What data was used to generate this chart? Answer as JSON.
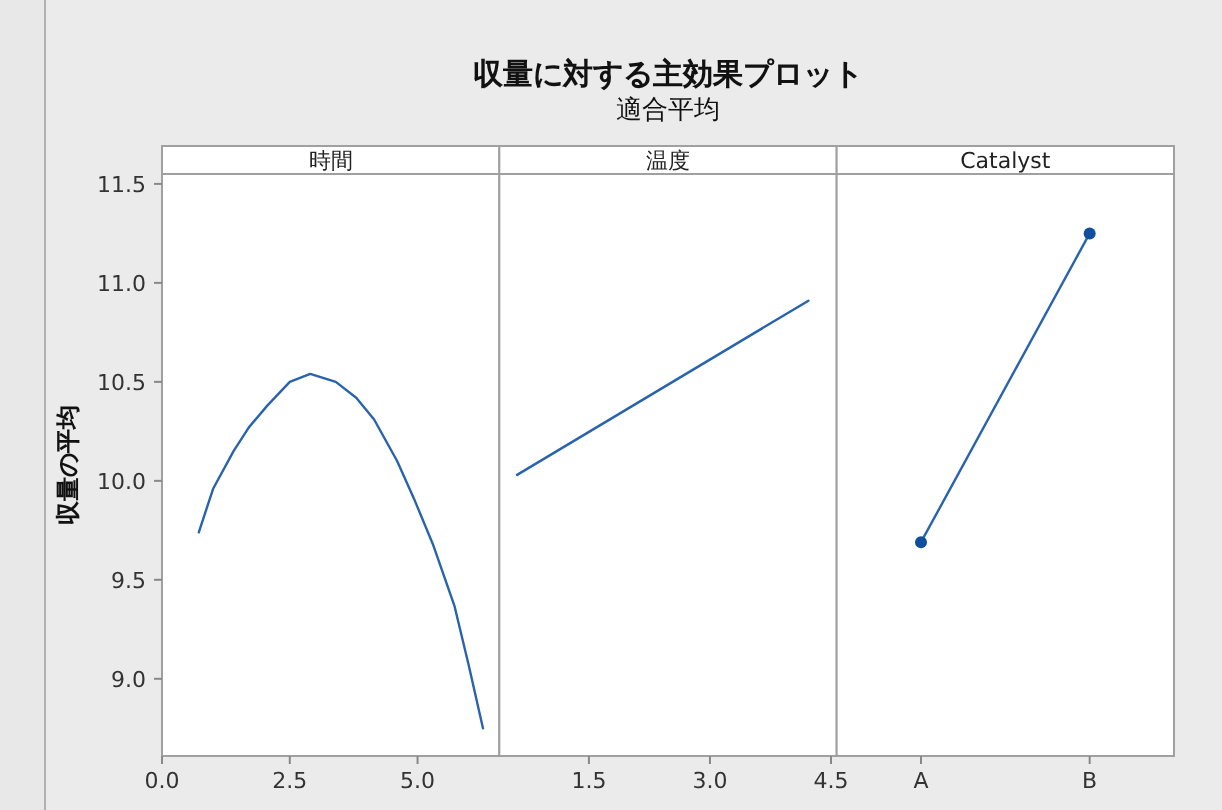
{
  "chart_data": [
    {
      "type": "line",
      "annotations": [
        "収量に対する主効果プロット",
        "適合平均"
      ],
      "xlabel": "時間",
      "ylabel": "収量の平均",
      "marker": "none",
      "grid": false,
      "xlim": [
        0,
        6.6
      ],
      "xticks": [
        {
          "value": 0,
          "label": "0.0"
        },
        2.5,
        {
          "value": 5,
          "label": "5.0"
        }
      ],
      "ylim": [
        8.61,
        11.55
      ],
      "yticks": [
        {
          "value": 9,
          "label": "9.0"
        },
        9.5,
        {
          "value": 10,
          "label": "10.0"
        },
        10.5,
        {
          "value": 11,
          "label": "11.0"
        },
        11.5
      ],
      "series": [
        {
          "color": "#2a63ad",
          "x": [
            0.72,
            1.0,
            1.4,
            1.7,
            2.06,
            2.5,
            2.9,
            3.4,
            3.8,
            4.15,
            4.6,
            4.93,
            5.3,
            5.72,
            6.0,
            6.28
          ],
          "values": [
            9.74,
            9.96,
            10.15,
            10.27,
            10.38,
            10.5,
            10.54,
            10.5,
            10.42,
            10.31,
            10.1,
            9.91,
            9.68,
            9.37,
            9.07,
            8.75
          ]
        }
      ]
    },
    {
      "type": "line",
      "xlabel": "温度",
      "marker": "none",
      "grid": false,
      "tick_labels": "x",
      "xlim": [
        0.39,
        4.57
      ],
      "xticks": [
        1.5,
        {
          "value": 3,
          "label": "3.0"
        },
        4.5
      ],
      "ylim": [
        8.61,
        11.55
      ],
      "series": [
        {
          "color": "#2a63ad",
          "x": [
            0.61,
            4.22
          ],
          "values": [
            10.03,
            10.91
          ]
        }
      ]
    },
    {
      "type": "line",
      "xlabel": "Catalyst",
      "marker": "circle",
      "grid": false,
      "tick_labels": "x",
      "categories": [
        "A",
        "B"
      ],
      "ylim": [
        8.61,
        11.55
      ],
      "series": [
        {
          "color": "#2a63ad",
          "values": [
            9.69,
            11.25
          ]
        }
      ]
    }
  ]
}
